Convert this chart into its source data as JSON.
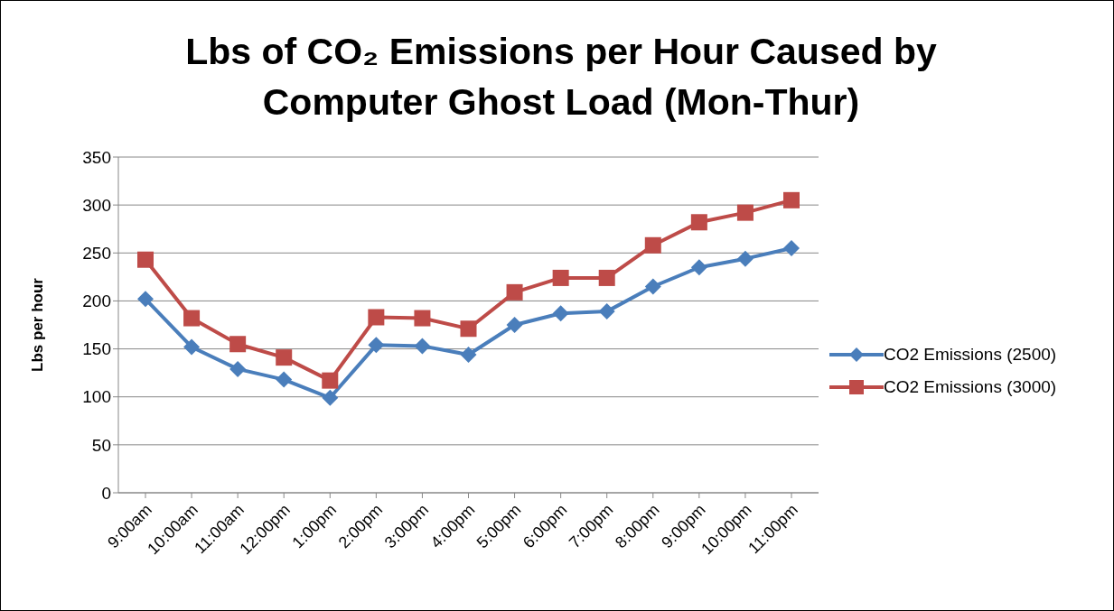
{
  "chart_data": {
    "type": "line",
    "title": "Lbs of CO₂ Emissions per Hour Caused by Computer Ghost Load (Mon-Thur)",
    "ylabel": "Lbs per hour",
    "categories": [
      "9:00am",
      "10:00am",
      "11:00am",
      "12:00pm",
      "1:00pm",
      "2:00pm",
      "3:00pm",
      "4:00pm",
      "5:00pm",
      "6:00pm",
      "7:00pm",
      "8:00pm",
      "9:00pm",
      "10:00pm",
      "11:00pm"
    ],
    "series": [
      {
        "name": "CO2 Emissions (2500)",
        "color": "#4a7ebb",
        "marker": "diamond",
        "values": [
          202,
          152,
          129,
          118,
          99,
          154,
          153,
          144,
          175,
          187,
          189,
          215,
          235,
          244,
          255
        ]
      },
      {
        "name": "CO2 Emissions (3000)",
        "color": "#be4b48",
        "marker": "square",
        "values": [
          243,
          182,
          155,
          141,
          117,
          183,
          182,
          171,
          209,
          224,
          224,
          258,
          282,
          292,
          305
        ]
      }
    ],
    "ylim": [
      0,
      350
    ],
    "yticks": [
      0,
      50,
      100,
      150,
      200,
      250,
      300,
      350
    ],
    "grid": "y",
    "legend": "right",
    "line_style": "solid"
  }
}
